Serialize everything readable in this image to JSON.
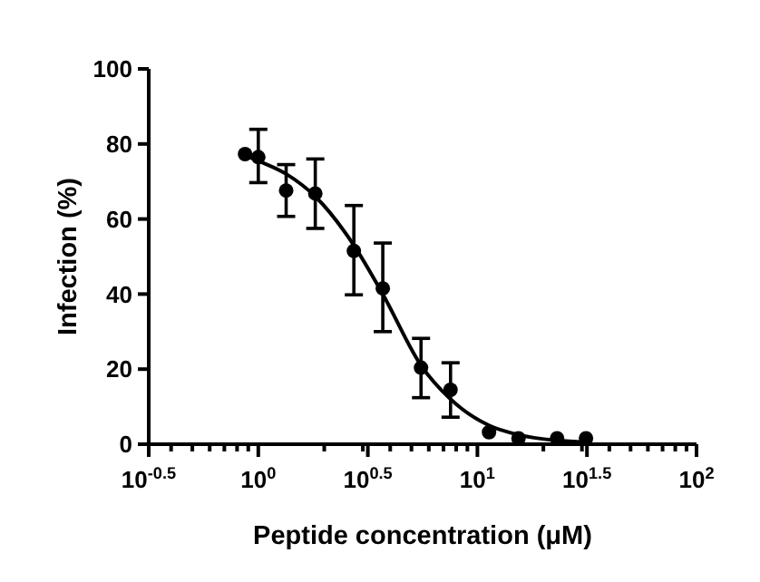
{
  "chart_data": {
    "type": "scatter",
    "xlabel": "Peptide concentration (μM)",
    "ylabel": "Infection (%)",
    "log": "x",
    "xlim": [
      0.3162,
      100
    ],
    "ylim": [
      0,
      100
    ],
    "xticks": [
      {
        "value": 0.3162,
        "label": "10$^{-0.5}$"
      },
      {
        "value": 0.4,
        "label": null
      },
      {
        "value": 0.5,
        "label": null
      },
      {
        "value": 0.6,
        "label": null
      },
      {
        "value": 0.7,
        "label": null
      },
      {
        "value": 0.8,
        "label": null
      },
      {
        "value": 0.9,
        "label": null
      },
      {
        "value": 1,
        "label": "10$^{0}$"
      },
      {
        "value": 2,
        "label": null
      },
      {
        "value": 3,
        "label": null
      },
      {
        "value": 3.162,
        "label": "10$^{0.5}$"
      },
      {
        "value": 4,
        "label": null
      },
      {
        "value": 5,
        "label": null
      },
      {
        "value": 6,
        "label": null
      },
      {
        "value": 7,
        "label": null
      },
      {
        "value": 8,
        "label": null
      },
      {
        "value": 9,
        "label": null
      },
      {
        "value": 10,
        "label": "10$^{1}$"
      },
      {
        "value": 20,
        "label": null
      },
      {
        "value": 30,
        "label": null
      },
      {
        "value": 31.62,
        "label": "10$^{1.5}$"
      },
      {
        "value": 40,
        "label": null
      },
      {
        "value": 50,
        "label": null
      },
      {
        "value": 60,
        "label": null
      },
      {
        "value": 70,
        "label": null
      },
      {
        "value": 80,
        "label": null
      },
      {
        "value": 90,
        "label": null
      },
      {
        "value": 100,
        "label": "10$^{2}$"
      }
    ],
    "yticks": [
      0,
      20,
      40,
      60,
      80,
      100
    ],
    "grid": false,
    "series": [
      {
        "marker": "circle",
        "color": "#000000",
        "x": [
          0.87,
          1.0,
          1.34,
          1.82,
          2.73,
          3.7,
          5.53,
          7.54,
          11.3,
          15.4,
          23.1,
          31.3
        ],
        "values": [
          77.3,
          76.5,
          67.6,
          66.8,
          51.5,
          41.5,
          20.4,
          14.5,
          3.2,
          1.6,
          1.6,
          1.6
        ],
        "errors": [
          null,
          [
            69.7,
            83.9
          ],
          [
            60.7,
            74.5
          ],
          [
            57.5,
            76
          ],
          [
            39.8,
            63.6
          ],
          [
            30,
            53.6
          ],
          [
            12.4,
            28.2
          ],
          [
            7.2,
            21.7
          ],
          null,
          null,
          null,
          null
        ]
      },
      {
        "type": "line",
        "color": "#000000",
        "x": [
          0.87,
          1.0,
          1.34,
          1.82,
          2.73,
          3.7,
          5.53,
          7.54,
          11.3,
          15.4,
          23.1,
          31.3
        ],
        "values": [
          77,
          75.5,
          72,
          66,
          53,
          40,
          21,
          12,
          5,
          2.5,
          1,
          0.5
        ]
      }
    ]
  }
}
